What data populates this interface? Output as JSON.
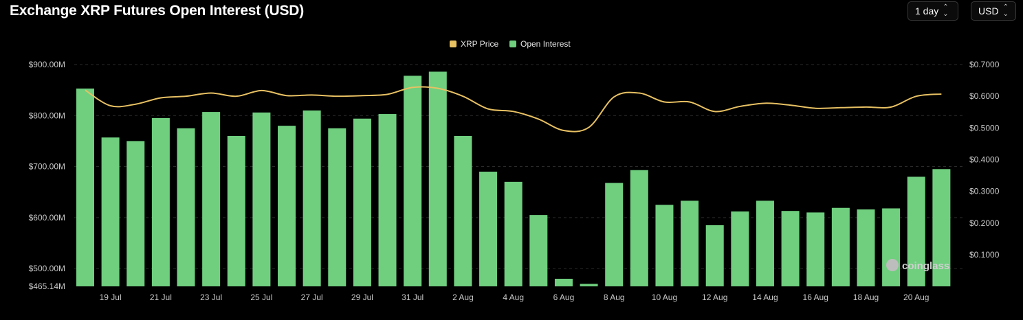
{
  "header": {
    "title": "Exchange XRP Futures Open Interest (USD)",
    "interval_value": "1 day",
    "currency_value": "USD"
  },
  "watermark": "coinglass",
  "colors": {
    "bar": "#6fcf7f",
    "line": "#e8c163",
    "grid": "#2a2a2a"
  },
  "chart_data": {
    "type": "bar",
    "title": "Exchange XRP Futures Open Interest (USD)",
    "legend": [
      "XRP Price",
      "Open Interest"
    ],
    "legend_position": "top-center",
    "categories": [
      "18 Jul",
      "19 Jul",
      "20 Jul",
      "21 Jul",
      "22 Jul",
      "23 Jul",
      "24 Jul",
      "25 Jul",
      "26 Jul",
      "27 Jul",
      "28 Jul",
      "29 Jul",
      "30 Jul",
      "31 Jul",
      "1 Aug",
      "2 Aug",
      "3 Aug",
      "4 Aug",
      "5 Aug",
      "6 Aug",
      "7 Aug",
      "8 Aug",
      "9 Aug",
      "10 Aug",
      "11 Aug",
      "12 Aug",
      "13 Aug",
      "14 Aug",
      "15 Aug",
      "16 Aug",
      "17 Aug",
      "18 Aug",
      "19 Aug",
      "20 Aug",
      "21 Aug"
    ],
    "x_tick_labels": [
      "19 Jul",
      "21 Jul",
      "23 Jul",
      "25 Jul",
      "27 Jul",
      "29 Jul",
      "31 Jul",
      "2 Aug",
      "4 Aug",
      "6 Aug",
      "8 Aug",
      "10 Aug",
      "12 Aug",
      "14 Aug",
      "16 Aug",
      "18 Aug",
      "20 Aug"
    ],
    "series": [
      {
        "name": "Open Interest",
        "type": "bar",
        "axis": "left",
        "values": [
          853,
          757,
          750,
          795,
          775,
          807,
          760,
          806,
          780,
          810,
          775,
          794,
          803,
          878,
          886,
          760,
          690,
          670,
          605,
          480,
          470,
          668,
          693,
          625,
          633,
          585,
          612,
          633,
          613,
          610,
          619,
          616,
          618,
          680,
          695
        ]
      },
      {
        "name": "XRP Price",
        "type": "line",
        "axis": "right",
        "values": [
          0.619,
          0.57,
          0.575,
          0.595,
          0.6,
          0.61,
          0.6,
          0.618,
          0.602,
          0.604,
          0.6,
          0.602,
          0.606,
          0.628,
          0.625,
          0.6,
          0.56,
          0.552,
          0.528,
          0.492,
          0.502,
          0.598,
          0.61,
          0.582,
          0.582,
          0.552,
          0.568,
          0.578,
          0.572,
          0.562,
          0.564,
          0.566,
          0.566,
          0.6,
          0.607
        ]
      }
    ],
    "y_left": {
      "min": 465.14,
      "max": 900,
      "ticks": [
        "$465.14M",
        "$500.00M",
        "$600.00M",
        "$700.00M",
        "$800.00M",
        "$900.00M"
      ],
      "tick_values": [
        465.14,
        500,
        600,
        700,
        800,
        900
      ]
    },
    "y_right": {
      "ticks": [
        "$0.1000",
        "$0.2000",
        "$0.3000",
        "$0.4000",
        "$0.5000",
        "$0.6000",
        "$0.7000"
      ],
      "tick_values": [
        0.1,
        0.2,
        0.3,
        0.4,
        0.5,
        0.6,
        0.7
      ]
    },
    "grid": true
  }
}
